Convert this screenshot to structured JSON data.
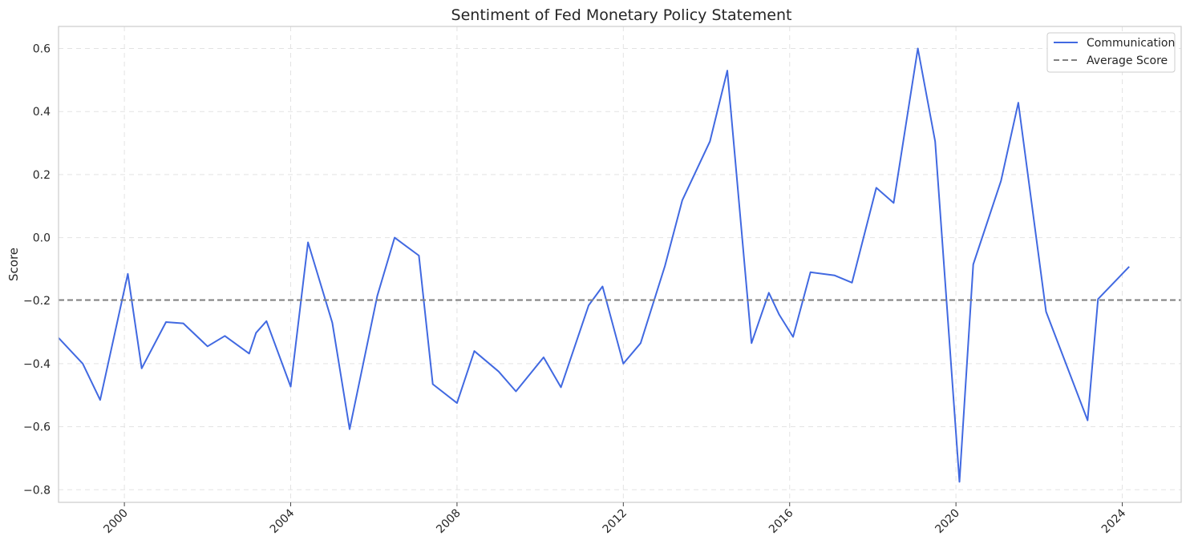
{
  "chart_data": {
    "type": "line",
    "title": "Sentiment of Fed Monetary Policy Statement",
    "xlabel": "",
    "ylabel": "Score",
    "xlim": [
      "1998-06-01",
      "2025-06-01"
    ],
    "ylim": [
      -0.84,
      0.67
    ],
    "x_ticks": [
      "2000",
      "2004",
      "2008",
      "2012",
      "2016",
      "2020",
      "2024"
    ],
    "y_ticks": [
      0.6,
      0.4,
      0.2,
      0.0,
      -0.2,
      -0.4,
      -0.6,
      -0.8
    ],
    "y_tick_labels": [
      "0.6",
      "0.4",
      "0.2",
      "0.0",
      "−0.2",
      "−0.4",
      "−0.6",
      "−0.8"
    ],
    "grid": true,
    "legend_position": "top-right",
    "series": [
      {
        "name": "Communication",
        "color": "#4169e1",
        "style": "solid",
        "points": [
          [
            "1998-06-01",
            -0.318
          ],
          [
            "1999-01-01",
            -0.4
          ],
          [
            "1999-06-01",
            -0.515
          ],
          [
            "2000-02-01",
            -0.115
          ],
          [
            "2000-06-01",
            -0.415
          ],
          [
            "2001-01-01",
            -0.268
          ],
          [
            "2001-06-01",
            -0.272
          ],
          [
            "2002-01-01",
            -0.345
          ],
          [
            "2002-06-01",
            -0.312
          ],
          [
            "2003-01-01",
            -0.368
          ],
          [
            "2003-03-01",
            -0.302
          ],
          [
            "2003-06-01",
            -0.265
          ],
          [
            "2004-01-01",
            -0.473
          ],
          [
            "2004-06-01",
            -0.015
          ],
          [
            "2005-01-01",
            -0.27
          ],
          [
            "2005-06-01",
            -0.608
          ],
          [
            "2006-02-01",
            -0.185
          ],
          [
            "2006-07-01",
            0.0
          ],
          [
            "2007-02-01",
            -0.057
          ],
          [
            "2007-06-01",
            -0.465
          ],
          [
            "2008-01-01",
            -0.525
          ],
          [
            "2008-06-01",
            -0.36
          ],
          [
            "2009-01-01",
            -0.425
          ],
          [
            "2009-06-01",
            -0.488
          ],
          [
            "2010-02-01",
            -0.38
          ],
          [
            "2010-07-01",
            -0.475
          ],
          [
            "2011-03-01",
            -0.215
          ],
          [
            "2011-07-01",
            -0.155
          ],
          [
            "2012-01-01",
            -0.4
          ],
          [
            "2012-06-01",
            -0.335
          ],
          [
            "2013-01-01",
            -0.09
          ],
          [
            "2013-06-01",
            0.118
          ],
          [
            "2014-02-01",
            0.305
          ],
          [
            "2014-07-01",
            0.53
          ],
          [
            "2015-02-01",
            -0.335
          ],
          [
            "2015-07-01",
            -0.175
          ],
          [
            "2015-10-01",
            -0.245
          ],
          [
            "2016-02-01",
            -0.315
          ],
          [
            "2016-07-01",
            -0.11
          ],
          [
            "2017-02-01",
            -0.12
          ],
          [
            "2017-07-01",
            -0.143
          ],
          [
            "2018-02-01",
            0.158
          ],
          [
            "2018-07-01",
            0.11
          ],
          [
            "2019-02-01",
            0.6
          ],
          [
            "2019-07-01",
            0.305
          ],
          [
            "2020-02-01",
            -0.775
          ],
          [
            "2020-06-01",
            -0.085
          ],
          [
            "2021-02-01",
            0.18
          ],
          [
            "2021-07-01",
            0.428
          ],
          [
            "2022-03-01",
            -0.235
          ],
          [
            "2023-03-01",
            -0.58
          ],
          [
            "2023-06-01",
            -0.195
          ],
          [
            "2024-03-01",
            -0.092
          ]
        ]
      },
      {
        "name": "Average Score",
        "color": "#808080",
        "style": "dashed",
        "constant": -0.198
      }
    ]
  }
}
